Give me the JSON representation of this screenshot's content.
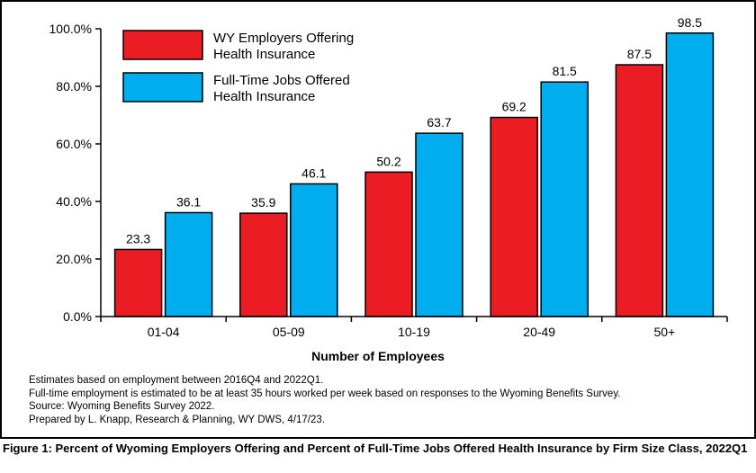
{
  "chart_data": {
    "type": "bar",
    "categories": [
      "01-04",
      "05-09",
      "10-19",
      "20-49",
      "50+"
    ],
    "series": [
      {
        "name": "WY Employers Offering Health Insurance",
        "color": "#ec1c24",
        "values": [
          23.3,
          35.9,
          50.2,
          69.2,
          87.5
        ]
      },
      {
        "name": "Full-Time Jobs Offered Health Insurance",
        "color": "#00aeef",
        "values": [
          36.1,
          46.1,
          63.7,
          81.5,
          98.5
        ]
      }
    ],
    "xlabel": "Number of Employees",
    "ylabel": "",
    "ylim": [
      0,
      100
    ],
    "yticks": [
      "0.0%",
      "20.0%",
      "40.0%",
      "60.0%",
      "80.0%",
      "100.0%"
    ],
    "grid": false,
    "legend_position": "top-left"
  },
  "notes": [
    "Estimates based on employment between 2016Q4 and 2022Q1.",
    "Full-time employment is estimated to be at least 35 hours worked per week based on responses to the Wyoming Benefits Survey.",
    "Source: Wyoming Benefits Survey 2022.",
    "Prepared by L. Knapp, Research & Planning, WY DWS, 4/17/23."
  ],
  "caption": "Figure 1: Percent of Wyoming Employers Offering and Percent of Full-Time Jobs Offered Health Insurance by Firm Size Class, 2022Q1"
}
